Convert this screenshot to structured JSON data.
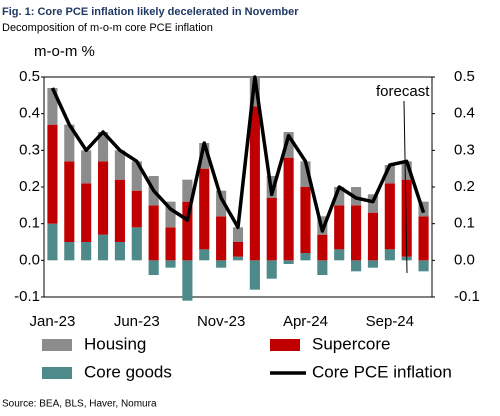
{
  "chart_data": {
    "type": "bar",
    "title": "Fig. 1: Core PCE inflation likely decelerated in November",
    "subtitle": "Decomposition of m-o-m core PCE inflation",
    "y_label": "m-o-m %",
    "source": "Source: BEA, BLS, Haver, Nomura",
    "annotations": [
      "forecast"
    ],
    "categories": [
      "Jan-23",
      null,
      null,
      null,
      null,
      "Jun-23",
      null,
      null,
      null,
      null,
      "Nov-23",
      null,
      null,
      null,
      null,
      "Apr-24",
      null,
      null,
      null,
      null,
      "Sep-24",
      null,
      null
    ],
    "series": [
      {
        "name": "Housing",
        "color": "#8c8c8c",
        "type": "bar",
        "values": [
          0.1,
          0.1,
          0.09,
          0.08,
          0.08,
          0.08,
          0.08,
          0.07,
          0.06,
          0.07,
          0.07,
          0.04,
          0.08,
          0.06,
          0.07,
          0.07,
          0.05,
          0.05,
          0.05,
          0.05,
          0.05,
          0.05,
          0.04
        ]
      },
      {
        "name": "Supercore",
        "color": "#c00000",
        "type": "bar",
        "values": [
          0.27,
          0.22,
          0.16,
          0.2,
          0.17,
          0.1,
          0.15,
          0.09,
          0.16,
          0.22,
          0.12,
          0.04,
          0.42,
          0.17,
          0.28,
          0.18,
          0.07,
          0.12,
          0.15,
          0.13,
          0.18,
          0.21,
          0.12
        ]
      },
      {
        "name": "Core goods",
        "color": "#4f8a8b",
        "type": "bar",
        "values": [
          0.1,
          0.05,
          0.05,
          0.07,
          0.05,
          0.09,
          -0.04,
          -0.02,
          -0.11,
          0.03,
          -0.02,
          0.01,
          -0.08,
          -0.05,
          -0.01,
          0.02,
          -0.04,
          0.03,
          -0.03,
          -0.02,
          0.03,
          0.01,
          -0.03
        ]
      },
      {
        "name": "Core PCE inflation",
        "color": "#000000",
        "type": "line",
        "values": [
          0.47,
          0.37,
          0.3,
          0.35,
          0.3,
          0.27,
          0.19,
          0.14,
          0.11,
          0.32,
          0.17,
          0.09,
          0.5,
          0.18,
          0.34,
          0.27,
          0.08,
          0.2,
          0.17,
          0.16,
          0.26,
          0.27,
          0.13
        ]
      }
    ],
    "ylim": [
      -0.1,
      0.5
    ],
    "yticks": [
      -0.1,
      {
        "value": 0,
        "label": "0.0"
      },
      0.1,
      0.2,
      0.3,
      0.4,
      0.5
    ],
    "y2lim": [
      -0.1,
      0.5
    ],
    "y2ticks": [
      -0.1,
      {
        "value": 0,
        "label": "0.0"
      },
      0.1,
      0.2,
      0.3,
      0.4,
      0.5
    ],
    "grid": false
  }
}
